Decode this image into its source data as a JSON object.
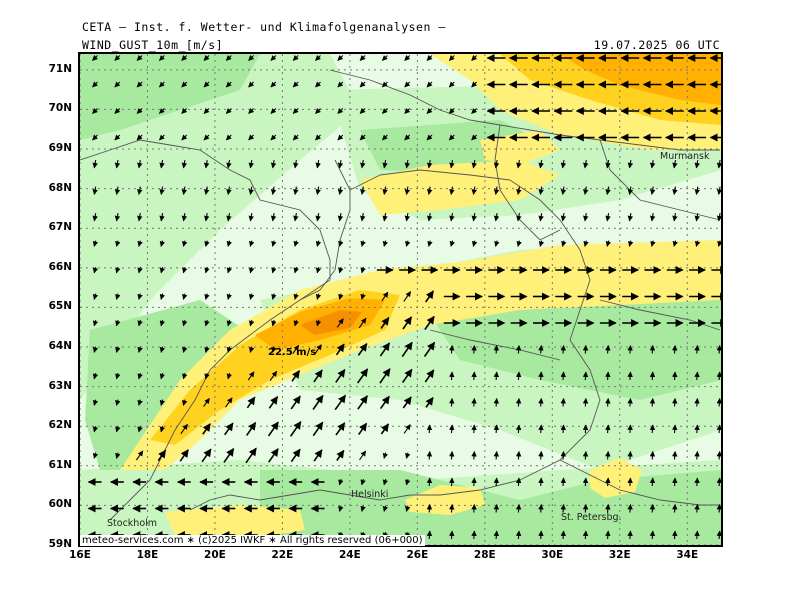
{
  "header": {
    "organization": "CETA — Inst. f. Wetter- und Klimafolgenanalysen —",
    "parameter": "WIND_GUST_10m_[m/s]",
    "valid_time": "19.07.2025 06 UTC"
  },
  "map": {
    "lat_labels": [
      "71N",
      "70N",
      "69N",
      "68N",
      "67N",
      "66N",
      "65N",
      "64N",
      "63N",
      "62N",
      "61N",
      "60N",
      "59N"
    ],
    "lon_labels": [
      "16E",
      "18E",
      "20E",
      "22E",
      "24E",
      "26E",
      "28E",
      "30E",
      "32E",
      "34E"
    ],
    "lat_range": [
      59,
      71.4
    ],
    "lon_range": [
      16,
      35
    ],
    "cities": [
      "Stockholm",
      "Helsinki",
      "St. Petersbg.",
      "Murmansk"
    ],
    "max_label": "22.5 m/s",
    "colors": {
      "calm": "#e8fbe4",
      "light": "#c8f5c0",
      "moderate": "#a7e99e",
      "strong": "#fff07a",
      "very_strong": "#ffd21f",
      "gale": "#ffb000",
      "storm": "#f59000",
      "coast": "#555555",
      "grid": "#777777"
    }
  },
  "footer": {
    "credit": "meteo-services.com ∗ (c)2025 IWKF ∗ All rights reserved (06+000)"
  }
}
